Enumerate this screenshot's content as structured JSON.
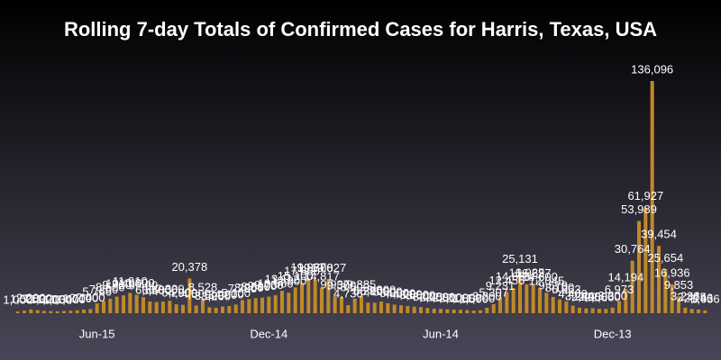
{
  "chart_data": {
    "type": "bar",
    "title": "Rolling 7-day Totals of Confirmed Cases for Harris, Texas, USA",
    "color": "#c08a2a",
    "categories": [
      null,
      null,
      null,
      null,
      null,
      null,
      null,
      null,
      null,
      null,
      null,
      null,
      "Jun-15",
      null,
      null,
      null,
      null,
      null,
      null,
      null,
      null,
      null,
      null,
      null,
      null,
      null,
      null,
      null,
      null,
      null,
      null,
      null,
      null,
      null,
      null,
      null,
      null,
      null,
      "Dec-14",
      null,
      null,
      null,
      null,
      null,
      null,
      null,
      null,
      null,
      null,
      null,
      null,
      null,
      null,
      null,
      null,
      null,
      null,
      null,
      null,
      null,
      null,
      null,
      null,
      null,
      "Jun-14",
      null,
      null,
      null,
      null,
      null,
      null,
      null,
      null,
      null,
      null,
      null,
      null,
      null,
      null,
      null,
      null,
      null,
      null,
      null,
      null,
      null,
      null,
      null,
      null,
      null,
      "Dec-13",
      null,
      null,
      null,
      null,
      null,
      null,
      null,
      null,
      null,
      null,
      null,
      null,
      null,
      null
    ],
    "values": [
      1000,
      1500,
      2200,
      1800,
      1300,
      1200,
      1100,
      1300,
      1400,
      1700,
      2100,
      2400,
      5766,
      7200,
      8500,
      9700,
      10400,
      11910,
      10800,
      9400,
      6848,
      6500,
      6800,
      7300,
      5200,
      4900,
      20378,
      4500,
      8528,
      3500,
      3200,
      3900,
      4200,
      5100,
      7700,
      8200,
      8800,
      9100,
      9700,
      10500,
      13112,
      12000,
      15100,
      17800,
      19987,
      19700,
      14817,
      19827,
      9937,
      9500,
      4736,
      8500,
      9885,
      6200,
      6100,
      6800,
      5800,
      5000,
      4600,
      4200,
      3800,
      3600,
      3000,
      2700,
      2500,
      2300,
      2100,
      2000,
      1800,
      1500,
      1700,
      3200,
      5307,
      9231,
      12456,
      14681,
      25131,
      16925,
      16627,
      14600,
      12045,
      9579,
      8100,
      6963,
      4400,
      3244,
      2800,
      2900,
      2600,
      2560,
      3300,
      6973,
      14194,
      30764,
      53989,
      61927,
      136096,
      39454,
      25654,
      16936,
      9853,
      3236,
      2475,
      2146,
      1636
    ],
    "value_labels": [
      "1,000",
      "1,500",
      "2,200",
      "1,800",
      "1,300",
      "1,200",
      "1,100",
      "1,300",
      "1,400",
      "1,700",
      "2,100",
      "2,400",
      "5,766",
      "7,200",
      "8,500",
      "9,700",
      "10,400",
      "11,910",
      "10,800",
      "9,400",
      "6,848",
      "6,500",
      "6,800",
      "7,300",
      "5,200",
      "4,900",
      "20,378",
      "4,500",
      "8,528",
      "3,500",
      "3,200",
      "3,900",
      "4,200",
      "5,100",
      "7,700",
      "8,200",
      "8,800",
      "9,100",
      "9,700",
      "10,500",
      "13,112",
      "12,000",
      "15,100",
      "17,800",
      "19,987",
      "19,700",
      "14,817",
      "19,827",
      "9,937",
      "9,500",
      "4,736",
      "8,500",
      "9,885",
      "6,200",
      "6,100",
      "6,800",
      "5,800",
      "5,000",
      "4,600",
      "4,200",
      "3,800",
      "3,600",
      "3,000",
      "2,700",
      "2,500",
      "2,300",
      "2,100",
      "2,000",
      "1,800",
      "1,500",
      "1,700",
      "3,200",
      "5,307",
      "9,231",
      "12,456",
      "14,681",
      "25,131",
      "16,925",
      "16,627",
      "14,600",
      "12,045",
      "9,579",
      "8,100",
      "6,963",
      "4,400",
      "3,244",
      "2,800",
      "2,900",
      "2,600",
      "2,560",
      "3,300",
      "6,973",
      "14,194",
      "30,764",
      "53,989",
      "61,927",
      "136,096",
      "39,454",
      "25,654",
      "16,936",
      "9,853",
      "3,236",
      "2,475",
      "2,146",
      "1,636"
    ]
  }
}
